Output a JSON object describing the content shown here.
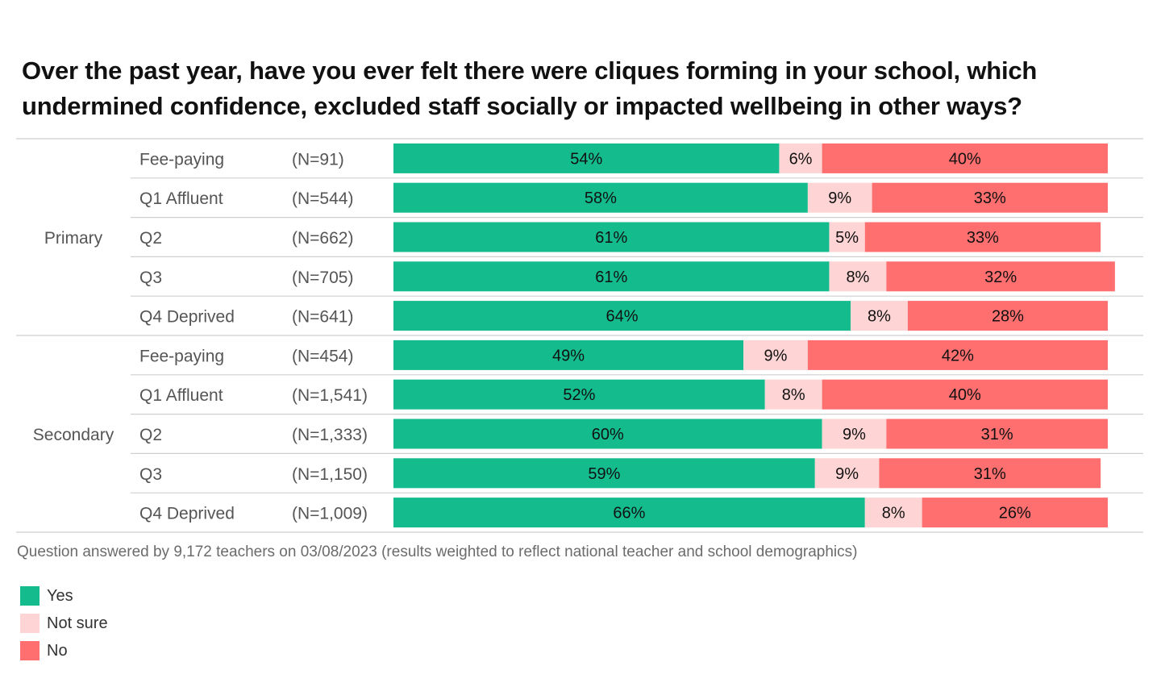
{
  "chart_data": {
    "type": "bar",
    "orientation": "horizontal",
    "stacked": true,
    "percent": true,
    "title": "Over the past year, have you ever felt there were cliques forming in your school, which undermined confidence, excluded staff socially or impacted wellbeing in other ways?",
    "groups": [
      {
        "name": "Primary",
        "rows": [
          {
            "label": "Fee-paying",
            "n": "(N=91)",
            "values": [
              54,
              6,
              40
            ]
          },
          {
            "label": "Q1 Affluent",
            "n": "(N=544)",
            "values": [
              58,
              9,
              33
            ]
          },
          {
            "label": "Q2",
            "n": "(N=662)",
            "values": [
              61,
              5,
              33
            ]
          },
          {
            "label": "Q3",
            "n": "(N=705)",
            "values": [
              61,
              8,
              32
            ]
          },
          {
            "label": "Q4 Deprived",
            "n": "(N=641)",
            "values": [
              64,
              8,
              28
            ]
          }
        ]
      },
      {
        "name": "Secondary",
        "rows": [
          {
            "label": "Fee-paying",
            "n": "(N=454)",
            "values": [
              49,
              9,
              42
            ]
          },
          {
            "label": "Q1 Affluent",
            "n": "(N=1,541)",
            "values": [
              52,
              8,
              40
            ]
          },
          {
            "label": "Q2",
            "n": "(N=1,333)",
            "values": [
              60,
              9,
              31
            ]
          },
          {
            "label": "Q3",
            "n": "(N=1,150)",
            "values": [
              59,
              9,
              31
            ]
          },
          {
            "label": "Q4 Deprived",
            "n": "(N=1,009)",
            "values": [
              66,
              8,
              26
            ]
          }
        ]
      }
    ],
    "series": [
      {
        "name": "Yes",
        "color": "#14bb8d"
      },
      {
        "name": "Not sure",
        "color": "#ffd4d4"
      },
      {
        "name": "No",
        "color": "#ff6f6f"
      }
    ],
    "xlim": [
      0,
      100
    ],
    "legend_position": "bottom-left"
  },
  "note": "Question answered by 9,172 teachers on 03/08/2023 (results weighted to reflect national teacher and school demographics)"
}
